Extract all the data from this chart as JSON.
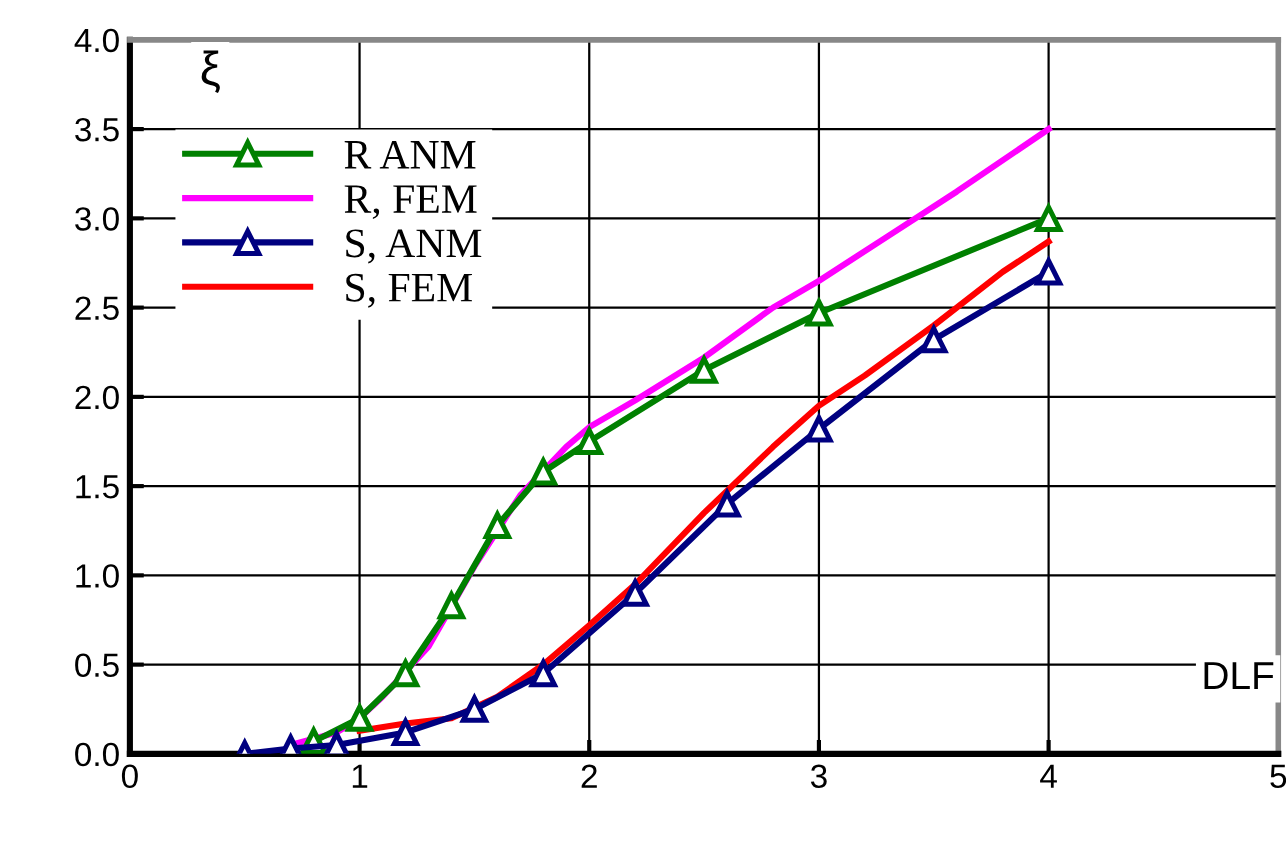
{
  "chart_data": {
    "type": "line",
    "xlabel": "DLF",
    "ylabel": "ξ",
    "xlim": [
      0,
      5
    ],
    "ylim": [
      0,
      4
    ],
    "xticks": [
      0,
      1,
      2,
      3,
      4,
      5
    ],
    "yticks": [
      {
        "value": 0,
        "label": "0.0"
      },
      {
        "value": 0.5,
        "label": "0.5"
      },
      {
        "value": 1,
        "label": "1.0"
      },
      {
        "value": 1.5,
        "label": "1.5"
      },
      {
        "value": 2,
        "label": "2.0"
      },
      {
        "value": 2.5,
        "label": "2.5"
      },
      {
        "value": 3,
        "label": "3.0"
      },
      {
        "value": 3.5,
        "label": "3.5"
      },
      {
        "value": 4,
        "label": "4.0"
      }
    ],
    "grid": true,
    "legend": "top left",
    "line_style": "solid",
    "series": [
      {
        "name": "R ANM",
        "color": "#008000",
        "marker": "triangle",
        "x": [
          0.8,
          1.0,
          1.2,
          1.4,
          1.6,
          1.8,
          2.0,
          2.5,
          3.0,
          4.0
        ],
        "values": [
          0.07,
          0.2,
          0.45,
          0.83,
          1.28,
          1.58,
          1.75,
          2.15,
          2.47,
          3.0
        ]
      },
      {
        "name": "R, FEM",
        "color": "#ff00ff",
        "marker": "none",
        "x": [
          0.7,
          0.9,
          1.0,
          1.1,
          1.3,
          1.5,
          1.7,
          1.9,
          2.0,
          2.2,
          2.5,
          2.8,
          3.0,
          3.3,
          3.6,
          4.0
        ],
        "values": [
          0.05,
          0.12,
          0.2,
          0.32,
          0.6,
          1.05,
          1.45,
          1.72,
          1.83,
          1.98,
          2.22,
          2.5,
          2.65,
          2.9,
          3.15,
          3.5
        ]
      },
      {
        "name": "S, ANM",
        "color": "#000080",
        "marker": "triangle",
        "x": [
          0.5,
          0.7,
          0.9,
          1.2,
          1.5,
          1.8,
          2.2,
          2.6,
          3.0,
          3.5,
          4.0
        ],
        "values": [
          0.0,
          0.03,
          0.05,
          0.12,
          0.25,
          0.45,
          0.9,
          1.4,
          1.82,
          2.32,
          2.7
        ]
      },
      {
        "name": "S, FEM",
        "color": "#ff0000",
        "marker": "none",
        "x": [
          1.0,
          1.2,
          1.4,
          1.6,
          1.8,
          2.0,
          2.2,
          2.5,
          2.8,
          3.0,
          3.2,
          3.5,
          3.8,
          4.0
        ],
        "values": [
          0.13,
          0.17,
          0.2,
          0.32,
          0.5,
          0.72,
          0.95,
          1.35,
          1.72,
          1.95,
          2.12,
          2.4,
          2.7,
          2.87
        ]
      }
    ]
  }
}
